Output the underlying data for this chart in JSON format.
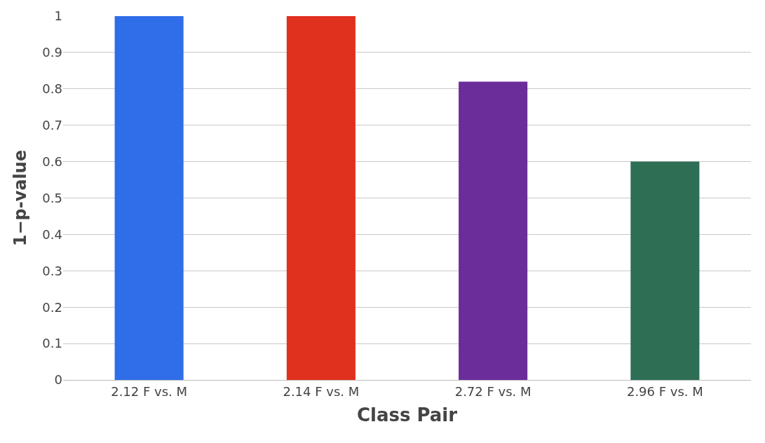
{
  "chart_data": {
    "type": "bar",
    "xlabel": "Class Pair",
    "ylabel": "1−p-value",
    "categories": [
      "2.12 F vs. M",
      "2.14 F vs. M",
      "2.72 F vs. M",
      "2.96 F vs. M"
    ],
    "values": [
      1,
      1,
      0.82,
      0.6
    ],
    "colors": [
      "#2f6ee8",
      "#e0301e",
      "#6a2d9a",
      "#2d6e55"
    ],
    "ylim": [
      0,
      1
    ],
    "yticks": [
      0,
      0.1,
      0.2,
      0.3,
      0.4,
      0.5,
      0.6,
      0.7,
      0.8,
      0.9,
      1
    ],
    "grid": "y",
    "legend": false
  }
}
